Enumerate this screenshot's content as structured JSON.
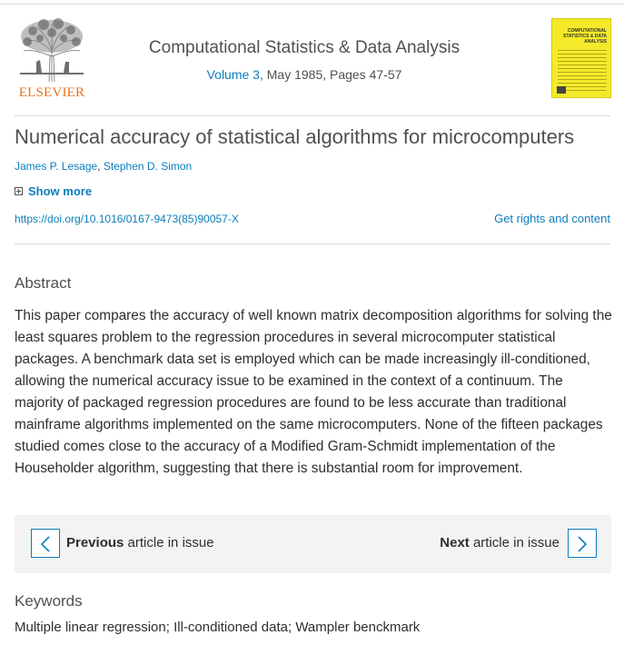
{
  "publisher": {
    "name": "ELSEVIER",
    "logo_icon": "elsevier-tree-icon"
  },
  "journal": {
    "title": "Computational Statistics & Data Analysis",
    "volume_link": "Volume 3",
    "issue_info": ", May 1985, Pages 47-57",
    "cover_text": "COMPUTATIONAL STATISTICS & DATA ANALYSIS",
    "cover_color": "#f4ea2a"
  },
  "article": {
    "title": "Numerical accuracy of statistical algorithms for microcomputers",
    "authors": [
      "James P. Lesage",
      "Stephen D. Simon"
    ],
    "author_separator": ", ",
    "show_more_label": "Show more",
    "doi": "https://doi.org/10.1016/0167-9473(85)90057-X",
    "rights_label": "Get rights and content"
  },
  "abstract": {
    "heading": "Abstract",
    "text": "This paper compares the accuracy of well known matrix decomposition algorithms for solving the least squares problem to the regression procedures in several microcomputer statistical packages. A benchmark data set is employed which can be made increasingly ill-conditioned, allowing the numerical accuracy issue to be examined in the context of a continuum. The majority of packaged regression procedures are found to be less accurate than traditional mainframe algorithms implemented on the same microcomputers. None of the fifteen packages studied comes close to the accuracy of a Modified Gram-Schmidt implementation of the Householder algorithm, suggesting that there is substantial room for improvement."
  },
  "navigation": {
    "previous_bold": "Previous",
    "previous_rest": " article in issue",
    "next_bold": "Next",
    "next_rest": " article in issue"
  },
  "keywords": {
    "heading": "Keywords",
    "text": "Multiple linear regression; Ill-conditioned data; Wampler benckmark"
  },
  "colors": {
    "link": "#0c7dbb",
    "brand_orange": "#e9711c",
    "nav_background": "#f3f3f3"
  }
}
